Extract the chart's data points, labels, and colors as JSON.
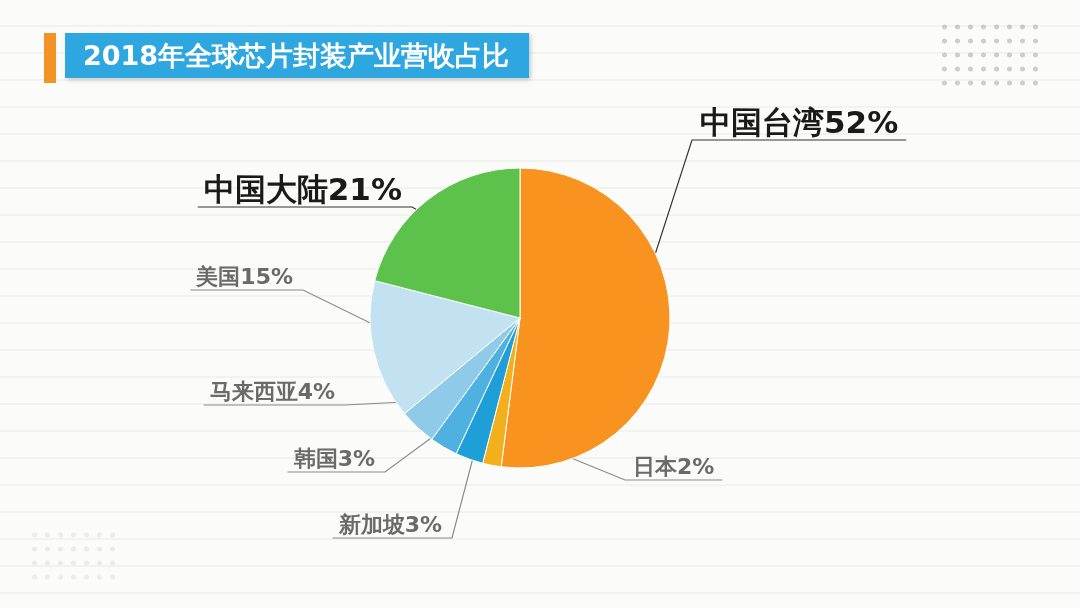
{
  "chart_data": {
    "type": "pie",
    "title": "2018年全球芯片封装产业营收占比",
    "categories": [
      "中国台湾",
      "日本",
      "新加坡",
      "韩国",
      "马来西亚",
      "美国",
      "中国大陆"
    ],
    "values": [
      52,
      2,
      3,
      3,
      4,
      15,
      21
    ],
    "colors": [
      "#f7931e",
      "#f2b11c",
      "#1f9fd8",
      "#4fb1e0",
      "#8fcbe8",
      "#c3e2f1",
      "#5dc24b"
    ],
    "value_labels": [
      "52%",
      "2%",
      "3%",
      "3%",
      "4%",
      "15%",
      "21%"
    ]
  }
}
